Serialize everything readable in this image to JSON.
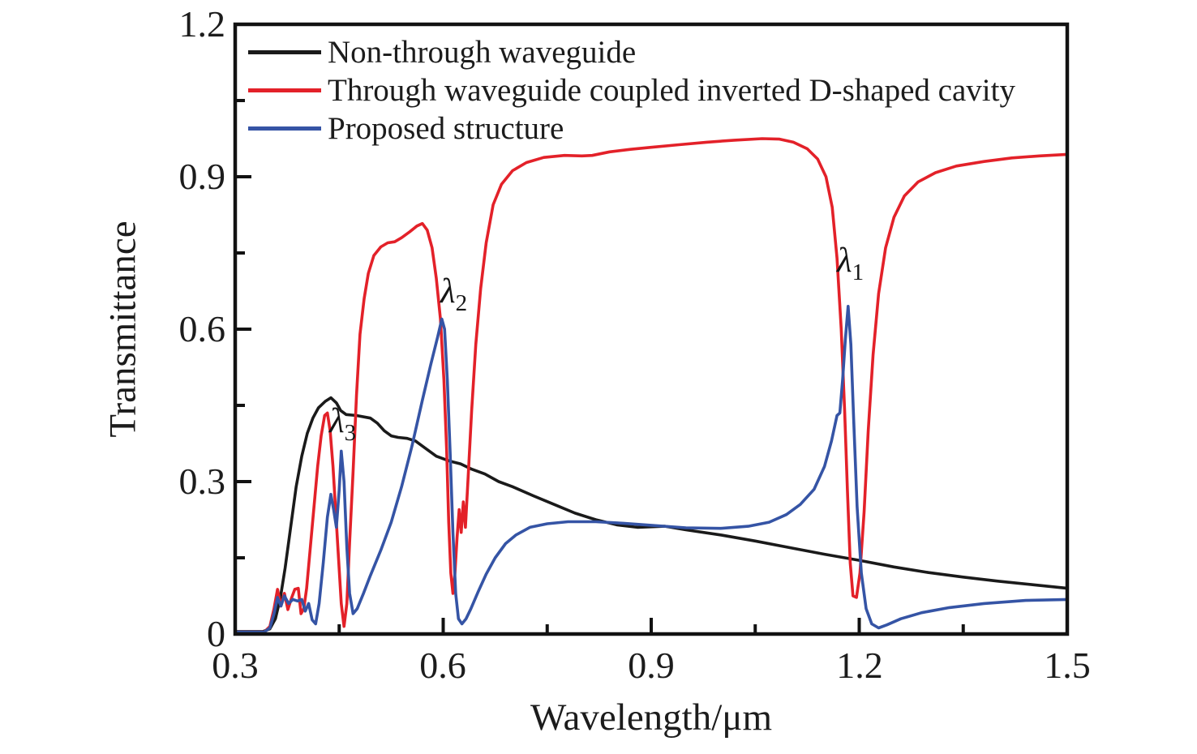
{
  "figure": {
    "background": "#ffffff"
  },
  "axes": {
    "x": {
      "title": "Wavelength/μm",
      "min": 0.3,
      "max": 1.5,
      "major_ticks": [
        0.3,
        0.6,
        0.9,
        1.2,
        1.5
      ],
      "minor_ticks": [
        0.45,
        0.75,
        1.05,
        1.35
      ],
      "tick_labels": [
        "0.3",
        "0.6",
        "0.9",
        "1.2",
        "1.5"
      ]
    },
    "y": {
      "title": "Transmittance",
      "min": 0,
      "max": 1.2,
      "major_ticks": [
        0,
        0.3,
        0.6,
        0.9,
        1.2
      ],
      "minor_ticks": [
        0.15,
        0.45,
        0.75,
        1.05
      ],
      "tick_labels": [
        "0",
        "0.3",
        "0.6",
        "0.9",
        "1.2"
      ]
    }
  },
  "legend": {
    "items": [
      {
        "label": "Non-through waveguide",
        "color": "#1a1a1a"
      },
      {
        "label": "Through waveguide coupled inverted D-shaped cavity",
        "color": "#e32129"
      },
      {
        "label": "Proposed structure",
        "color": "#3554a5"
      }
    ]
  },
  "annotations": [
    {
      "symbol": "λ",
      "sub": "1"
    },
    {
      "symbol": "λ",
      "sub": "2"
    },
    {
      "symbol": "λ",
      "sub": "3"
    }
  ],
  "chart_data": {
    "type": "line",
    "title": "",
    "xlabel": "Wavelength/μm",
    "ylabel": "Transmittance",
    "xlim": [
      0.3,
      1.5
    ],
    "ylim": [
      0,
      1.2
    ],
    "grid": false,
    "legend_position": "top-left",
    "annotations": [
      {
        "text": "λ1",
        "x": 1.175,
        "y": 0.77
      },
      {
        "text": "λ2",
        "x": 0.6,
        "y": 0.71
      },
      {
        "text": "λ3",
        "x": 0.44,
        "y": 0.45
      }
    ],
    "series": [
      {
        "name": "Non-through waveguide",
        "color": "#1a1a1a",
        "points": [
          [
            0.3,
            0.005
          ],
          [
            0.34,
            0.005
          ],
          [
            0.35,
            0.01
          ],
          [
            0.358,
            0.03
          ],
          [
            0.365,
            0.07
          ],
          [
            0.372,
            0.13
          ],
          [
            0.38,
            0.21
          ],
          [
            0.388,
            0.29
          ],
          [
            0.396,
            0.35
          ],
          [
            0.404,
            0.395
          ],
          [
            0.412,
            0.425
          ],
          [
            0.42,
            0.445
          ],
          [
            0.43,
            0.458
          ],
          [
            0.438,
            0.465
          ],
          [
            0.446,
            0.455
          ],
          [
            0.452,
            0.44
          ],
          [
            0.46,
            0.432
          ],
          [
            0.475,
            0.43
          ],
          [
            0.495,
            0.425
          ],
          [
            0.505,
            0.415
          ],
          [
            0.515,
            0.4
          ],
          [
            0.525,
            0.39
          ],
          [
            0.535,
            0.387
          ],
          [
            0.548,
            0.385
          ],
          [
            0.56,
            0.38
          ],
          [
            0.575,
            0.365
          ],
          [
            0.59,
            0.35
          ],
          [
            0.61,
            0.34
          ],
          [
            0.625,
            0.335
          ],
          [
            0.64,
            0.325
          ],
          [
            0.66,
            0.315
          ],
          [
            0.68,
            0.3
          ],
          [
            0.7,
            0.29
          ],
          [
            0.73,
            0.272
          ],
          [
            0.76,
            0.255
          ],
          [
            0.79,
            0.238
          ],
          [
            0.82,
            0.225
          ],
          [
            0.85,
            0.215
          ],
          [
            0.88,
            0.21
          ],
          [
            0.92,
            0.212
          ],
          [
            0.95,
            0.205
          ],
          [
            1.0,
            0.195
          ],
          [
            1.05,
            0.183
          ],
          [
            1.1,
            0.17
          ],
          [
            1.15,
            0.157
          ],
          [
            1.2,
            0.145
          ],
          [
            1.25,
            0.132
          ],
          [
            1.3,
            0.121
          ],
          [
            1.35,
            0.112
          ],
          [
            1.4,
            0.104
          ],
          [
            1.45,
            0.097
          ],
          [
            1.5,
            0.09
          ]
        ]
      },
      {
        "name": "Through waveguide coupled inverted D-shaped cavity",
        "color": "#e32129",
        "points": [
          [
            0.3,
            0.004
          ],
          [
            0.342,
            0.004
          ],
          [
            0.35,
            0.015
          ],
          [
            0.356,
            0.05
          ],
          [
            0.361,
            0.088
          ],
          [
            0.366,
            0.055
          ],
          [
            0.371,
            0.08
          ],
          [
            0.376,
            0.048
          ],
          [
            0.381,
            0.07
          ],
          [
            0.386,
            0.088
          ],
          [
            0.391,
            0.09
          ],
          [
            0.395,
            0.04
          ],
          [
            0.399,
            0.05
          ],
          [
            0.403,
            0.09
          ],
          [
            0.407,
            0.15
          ],
          [
            0.411,
            0.21
          ],
          [
            0.415,
            0.27
          ],
          [
            0.419,
            0.33
          ],
          [
            0.424,
            0.39
          ],
          [
            0.429,
            0.43
          ],
          [
            0.433,
            0.435
          ],
          [
            0.437,
            0.4
          ],
          [
            0.441,
            0.33
          ],
          [
            0.445,
            0.24
          ],
          [
            0.449,
            0.15
          ],
          [
            0.453,
            0.06
          ],
          [
            0.457,
            0.015
          ],
          [
            0.461,
            0.06
          ],
          [
            0.465,
            0.18
          ],
          [
            0.47,
            0.32
          ],
          [
            0.475,
            0.47
          ],
          [
            0.48,
            0.59
          ],
          [
            0.486,
            0.66
          ],
          [
            0.492,
            0.71
          ],
          [
            0.5,
            0.745
          ],
          [
            0.51,
            0.762
          ],
          [
            0.52,
            0.77
          ],
          [
            0.53,
            0.772
          ],
          [
            0.54,
            0.78
          ],
          [
            0.552,
            0.792
          ],
          [
            0.562,
            0.803
          ],
          [
            0.57,
            0.808
          ],
          [
            0.577,
            0.795
          ],
          [
            0.584,
            0.76
          ],
          [
            0.59,
            0.7
          ],
          [
            0.596,
            0.62
          ],
          [
            0.601,
            0.5
          ],
          [
            0.605,
            0.36
          ],
          [
            0.608,
            0.22
          ],
          [
            0.611,
            0.12
          ],
          [
            0.614,
            0.08
          ],
          [
            0.617,
            0.12
          ],
          [
            0.62,
            0.19
          ],
          [
            0.623,
            0.245
          ],
          [
            0.626,
            0.2
          ],
          [
            0.629,
            0.26
          ],
          [
            0.632,
            0.21
          ],
          [
            0.636,
            0.31
          ],
          [
            0.641,
            0.44
          ],
          [
            0.647,
            0.57
          ],
          [
            0.654,
            0.68
          ],
          [
            0.662,
            0.77
          ],
          [
            0.672,
            0.845
          ],
          [
            0.684,
            0.885
          ],
          [
            0.7,
            0.912
          ],
          [
            0.72,
            0.928
          ],
          [
            0.745,
            0.938
          ],
          [
            0.775,
            0.942
          ],
          [
            0.8,
            0.941
          ],
          [
            0.815,
            0.942
          ],
          [
            0.84,
            0.949
          ],
          [
            0.87,
            0.954
          ],
          [
            0.9,
            0.958
          ],
          [
            0.94,
            0.963
          ],
          [
            0.98,
            0.968
          ],
          [
            1.02,
            0.972
          ],
          [
            1.06,
            0.975
          ],
          [
            1.085,
            0.974
          ],
          [
            1.105,
            0.968
          ],
          [
            1.125,
            0.955
          ],
          [
            1.14,
            0.935
          ],
          [
            1.152,
            0.9
          ],
          [
            1.161,
            0.84
          ],
          [
            1.168,
            0.74
          ],
          [
            1.174,
            0.6
          ],
          [
            1.179,
            0.44
          ],
          [
            1.183,
            0.28
          ],
          [
            1.187,
            0.14
          ],
          [
            1.191,
            0.075
          ],
          [
            1.196,
            0.072
          ],
          [
            1.201,
            0.12
          ],
          [
            1.207,
            0.24
          ],
          [
            1.213,
            0.4
          ],
          [
            1.22,
            0.55
          ],
          [
            1.228,
            0.67
          ],
          [
            1.238,
            0.76
          ],
          [
            1.25,
            0.82
          ],
          [
            1.265,
            0.862
          ],
          [
            1.285,
            0.89
          ],
          [
            1.31,
            0.908
          ],
          [
            1.34,
            0.921
          ],
          [
            1.38,
            0.93
          ],
          [
            1.42,
            0.937
          ],
          [
            1.46,
            0.941
          ],
          [
            1.5,
            0.944
          ]
        ]
      },
      {
        "name": "Proposed structure",
        "color": "#3554a5",
        "points": [
          [
            0.3,
            0.004
          ],
          [
            0.342,
            0.004
          ],
          [
            0.35,
            0.012
          ],
          [
            0.356,
            0.04
          ],
          [
            0.361,
            0.072
          ],
          [
            0.366,
            0.055
          ],
          [
            0.371,
            0.075
          ],
          [
            0.377,
            0.06
          ],
          [
            0.383,
            0.068
          ],
          [
            0.39,
            0.065
          ],
          [
            0.396,
            0.068
          ],
          [
            0.401,
            0.045
          ],
          [
            0.406,
            0.06
          ],
          [
            0.411,
            0.028
          ],
          [
            0.416,
            0.02
          ],
          [
            0.421,
            0.06
          ],
          [
            0.427,
            0.14
          ],
          [
            0.433,
            0.23
          ],
          [
            0.438,
            0.275
          ],
          [
            0.442,
            0.245
          ],
          [
            0.446,
            0.21
          ],
          [
            0.45,
            0.285
          ],
          [
            0.453,
            0.36
          ],
          [
            0.457,
            0.3
          ],
          [
            0.461,
            0.17
          ],
          [
            0.465,
            0.08
          ],
          [
            0.47,
            0.04
          ],
          [
            0.476,
            0.05
          ],
          [
            0.485,
            0.08
          ],
          [
            0.495,
            0.115
          ],
          [
            0.51,
            0.165
          ],
          [
            0.525,
            0.22
          ],
          [
            0.54,
            0.29
          ],
          [
            0.555,
            0.37
          ],
          [
            0.57,
            0.46
          ],
          [
            0.582,
            0.53
          ],
          [
            0.592,
            0.585
          ],
          [
            0.598,
            0.62
          ],
          [
            0.602,
            0.6
          ],
          [
            0.606,
            0.5
          ],
          [
            0.61,
            0.36
          ],
          [
            0.614,
            0.2
          ],
          [
            0.618,
            0.08
          ],
          [
            0.622,
            0.03
          ],
          [
            0.627,
            0.02
          ],
          [
            0.633,
            0.03
          ],
          [
            0.64,
            0.05
          ],
          [
            0.65,
            0.082
          ],
          [
            0.662,
            0.118
          ],
          [
            0.675,
            0.15
          ],
          [
            0.69,
            0.178
          ],
          [
            0.705,
            0.195
          ],
          [
            0.725,
            0.21
          ],
          [
            0.75,
            0.217
          ],
          [
            0.78,
            0.221
          ],
          [
            0.82,
            0.221
          ],
          [
            0.86,
            0.218
          ],
          [
            0.9,
            0.214
          ],
          [
            0.95,
            0.209
          ],
          [
            1.0,
            0.208
          ],
          [
            1.04,
            0.212
          ],
          [
            1.07,
            0.22
          ],
          [
            1.095,
            0.235
          ],
          [
            1.115,
            0.255
          ],
          [
            1.135,
            0.285
          ],
          [
            1.15,
            0.33
          ],
          [
            1.16,
            0.38
          ],
          [
            1.168,
            0.43
          ],
          [
            1.172,
            0.435
          ],
          [
            1.176,
            0.5
          ],
          [
            1.18,
            0.58
          ],
          [
            1.184,
            0.645
          ],
          [
            1.188,
            0.57
          ],
          [
            1.192,
            0.42
          ],
          [
            1.197,
            0.25
          ],
          [
            1.203,
            0.12
          ],
          [
            1.21,
            0.05
          ],
          [
            1.218,
            0.02
          ],
          [
            1.228,
            0.012
          ],
          [
            1.24,
            0.018
          ],
          [
            1.26,
            0.03
          ],
          [
            1.29,
            0.042
          ],
          [
            1.33,
            0.052
          ],
          [
            1.38,
            0.06
          ],
          [
            1.44,
            0.066
          ],
          [
            1.5,
            0.068
          ]
        ]
      }
    ]
  }
}
